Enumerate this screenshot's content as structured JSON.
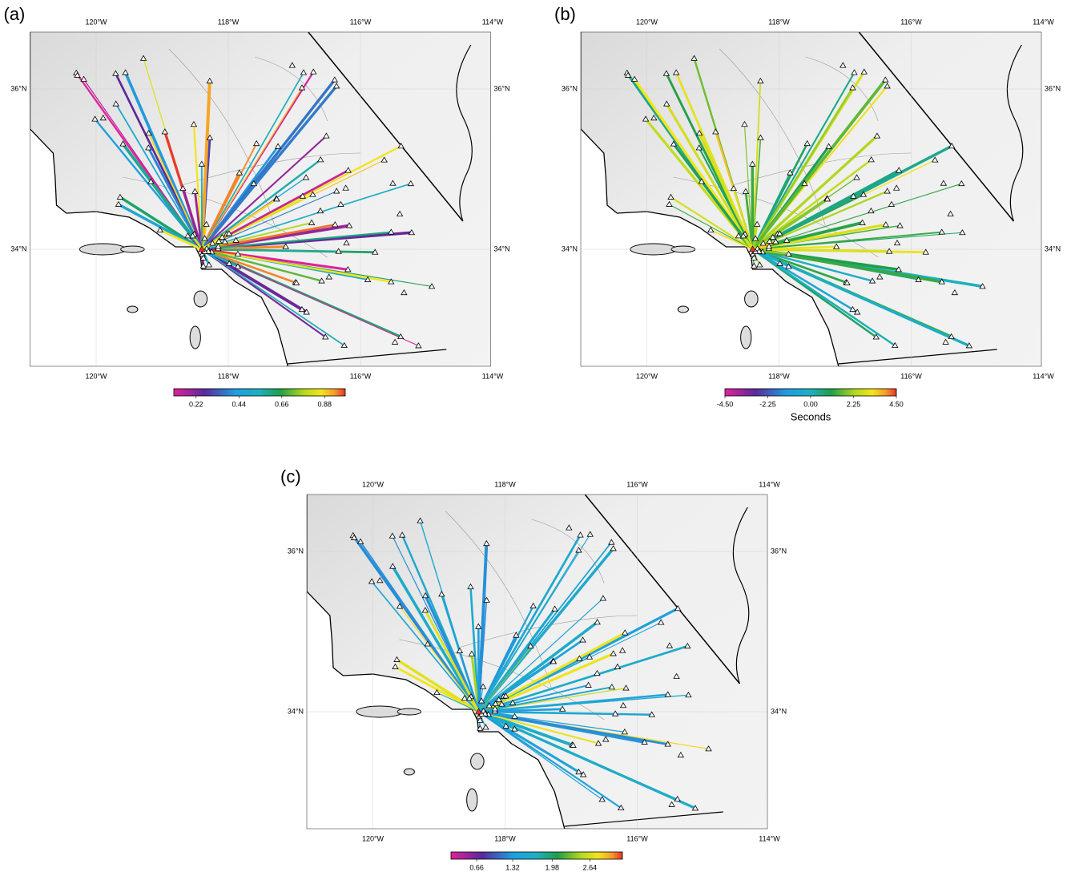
{
  "panels": [
    {
      "label": "(a)",
      "x_top": [
        "120°W",
        "118°W",
        "116°W",
        "114°W"
      ],
      "x_bottom": [
        "120°W",
        "118°W",
        "116°W",
        "114°W"
      ],
      "y_left": [
        "36°N",
        "34°N"
      ],
      "y_right": [
        "36°N",
        "34°N"
      ],
      "colorbar": {
        "ticks": [
          "0.22",
          "0.44",
          "0.66",
          "0.88"
        ]
      }
    },
    {
      "label": "(b)",
      "x_top": [
        "120°W",
        "118°W",
        "116°W",
        "114°W"
      ],
      "x_bottom": [
        "120°W",
        "118°W",
        "116°W",
        "114°W"
      ],
      "y_left": [
        "36°N",
        "34°N"
      ],
      "y_right": [
        "36°N",
        "34°N"
      ],
      "colorbar": {
        "ticks": [
          "-4.50",
          "-2.25",
          "0.00",
          "2.25",
          "4.50"
        ],
        "label": "Seconds"
      }
    },
    {
      "label": "(c)",
      "x_top": [
        "120°W",
        "118°W",
        "116°W",
        "114°W"
      ],
      "x_bottom": [
        "120°W",
        "118°W",
        "116°W",
        "114°W"
      ],
      "y_left": [
        "36°N",
        "34°N"
      ],
      "y_right": [
        "36°N",
        "34°N"
      ],
      "colorbar": {
        "ticks": [
          "0.66",
          "1.32",
          "1.98",
          "2.64"
        ]
      }
    }
  ]
}
